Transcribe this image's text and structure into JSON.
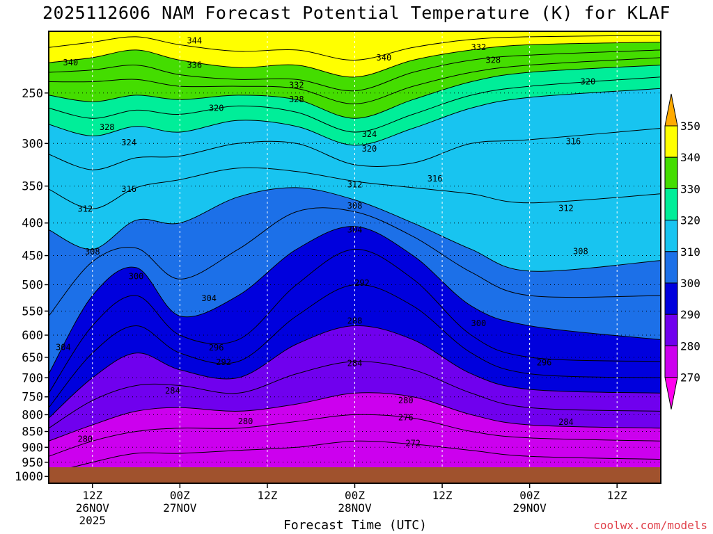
{
  "page": {
    "title": "2025112606 NAM Forecast Potential Temperature (K) for KLAF",
    "credit": "coolwx.com/models"
  },
  "chart_data": {
    "type": "heatmap",
    "title": "2025112606 NAM Forecast Potential Temperature (K) for KLAF",
    "xlabel": "Forecast Time (UTC)",
    "ylabel": "",
    "x_ticks": [
      {
        "line1": "12Z",
        "line2": "26NOV",
        "line3": "2025"
      },
      {
        "line1": "00Z",
        "line2": "27NOV",
        "line3": ""
      },
      {
        "line1": "12Z",
        "line2": "",
        "line3": ""
      },
      {
        "line1": "00Z",
        "line2": "28NOV",
        "line3": ""
      },
      {
        "line1": "12Z",
        "line2": "",
        "line3": ""
      },
      {
        "line1": "00Z",
        "line2": "29NOV",
        "line3": ""
      },
      {
        "line1": "12Z",
        "line2": "",
        "line3": ""
      }
    ],
    "x_hours": [
      6,
      18,
      30,
      42,
      54,
      66,
      78
    ],
    "xlim_hours": [
      0,
      84
    ],
    "y_ticks": [
      "250",
      "300",
      "350",
      "400",
      "450",
      "500",
      "550",
      "600",
      "650",
      "700",
      "750",
      "800",
      "850",
      "900",
      "950",
      "1000"
    ],
    "y_values": [
      250,
      300,
      350,
      400,
      450,
      500,
      550,
      600,
      650,
      700,
      750,
      800,
      850,
      900,
      950,
      1000
    ],
    "ylim_hpa": [
      200,
      1025
    ],
    "y_scale": "log-pressure",
    "grid": true,
    "colorbar": {
      "labels": [
        "350",
        "340",
        "330",
        "320",
        "310",
        "300",
        "290",
        "280",
        "270"
      ],
      "bands": [
        {
          "min": 340,
          "max": 350,
          "color": "#ffff00"
        },
        {
          "min": 330,
          "max": 340,
          "color": "#44dd00"
        },
        {
          "min": 320,
          "max": 330,
          "color": "#00ee99"
        },
        {
          "min": 310,
          "max": 320,
          "color": "#18c4f0"
        },
        {
          "min": 300,
          "max": 310,
          "color": "#1c70e8"
        },
        {
          "min": 290,
          "max": 300,
          "color": "#0000dd"
        },
        {
          "min": 280,
          "max": 290,
          "color": "#7000ee"
        },
        {
          "min": 270,
          "max": 280,
          "color": "#cc00ee"
        }
      ],
      "over_color": "#ffaa00",
      "under_color": "#ff00ee"
    },
    "series": [
      {
        "value": 344,
        "points": [
          [
            0,
            212
          ],
          [
            6,
            208
          ],
          [
            12,
            204
          ],
          [
            18,
            210
          ],
          [
            26,
            215
          ],
          [
            34,
            214
          ],
          [
            42,
            222
          ],
          [
            50,
            212
          ],
          [
            58,
            206
          ],
          [
            66,
            204
          ],
          [
            84,
            203
          ]
        ]
      },
      {
        "value": 340,
        "points": [
          [
            0,
            224
          ],
          [
            6,
            220
          ],
          [
            12,
            214
          ],
          [
            18,
            222
          ],
          [
            26,
            228
          ],
          [
            34,
            226
          ],
          [
            42,
            236
          ],
          [
            50,
            222
          ],
          [
            58,
            214
          ],
          [
            66,
            210
          ],
          [
            84,
            208
          ]
        ]
      },
      {
        "value": 336,
        "points": [
          [
            0,
            232
          ],
          [
            6,
            230
          ],
          [
            12,
            226
          ],
          [
            18,
            234
          ],
          [
            26,
            238
          ],
          [
            34,
            238
          ],
          [
            42,
            248
          ],
          [
            50,
            232
          ],
          [
            58,
            222
          ],
          [
            66,
            218
          ],
          [
            84,
            214
          ]
        ]
      },
      {
        "value": 332,
        "points": [
          [
            0,
            240
          ],
          [
            6,
            240
          ],
          [
            12,
            238
          ],
          [
            18,
            244
          ],
          [
            26,
            244
          ],
          [
            34,
            246
          ],
          [
            42,
            260
          ],
          [
            50,
            244
          ],
          [
            58,
            232
          ],
          [
            66,
            226
          ],
          [
            84,
            220
          ]
        ]
      },
      {
        "value": 328,
        "points": [
          [
            0,
            252
          ],
          [
            6,
            258
          ],
          [
            12,
            252
          ],
          [
            18,
            256
          ],
          [
            26,
            252
          ],
          [
            34,
            256
          ],
          [
            42,
            274
          ],
          [
            50,
            256
          ],
          [
            58,
            240
          ],
          [
            66,
            232
          ],
          [
            84,
            226
          ]
        ]
      },
      {
        "value": 324,
        "points": [
          [
            0,
            264
          ],
          [
            6,
            274
          ],
          [
            12,
            266
          ],
          [
            18,
            270
          ],
          [
            26,
            262
          ],
          [
            34,
            268
          ],
          [
            42,
            288
          ],
          [
            50,
            270
          ],
          [
            58,
            252
          ],
          [
            66,
            244
          ],
          [
            84,
            236
          ]
        ]
      },
      {
        "value": 320,
        "points": [
          [
            0,
            280
          ],
          [
            6,
            292
          ],
          [
            12,
            282
          ],
          [
            18,
            288
          ],
          [
            26,
            276
          ],
          [
            34,
            282
          ],
          [
            42,
            302
          ],
          [
            50,
            284
          ],
          [
            58,
            264
          ],
          [
            66,
            254
          ],
          [
            84,
            246
          ]
        ]
      },
      {
        "value": 316,
        "points": [
          [
            0,
            312
          ],
          [
            6,
            330
          ],
          [
            12,
            316
          ],
          [
            18,
            314
          ],
          [
            26,
            300
          ],
          [
            34,
            300
          ],
          [
            42,
            324
          ],
          [
            50,
            322
          ],
          [
            58,
            300
          ],
          [
            66,
            296
          ],
          [
            84,
            284
          ]
        ]
      },
      {
        "value": 312,
        "points": [
          [
            0,
            354
          ],
          [
            6,
            380
          ],
          [
            12,
            352
          ],
          [
            18,
            342
          ],
          [
            26,
            328
          ],
          [
            34,
            332
          ],
          [
            42,
            344
          ],
          [
            50,
            352
          ],
          [
            58,
            360
          ],
          [
            66,
            372
          ],
          [
            84,
            360
          ]
        ]
      },
      {
        "value": 308,
        "points": [
          [
            0,
            410
          ],
          [
            6,
            440
          ],
          [
            12,
            396
          ],
          [
            18,
            400
          ],
          [
            26,
            364
          ],
          [
            34,
            352
          ],
          [
            42,
            368
          ],
          [
            50,
            400
          ],
          [
            58,
            440
          ],
          [
            66,
            476
          ],
          [
            84,
            458
          ]
        ]
      },
      {
        "value": 304,
        "points": [
          [
            0,
            560
          ],
          [
            6,
            460
          ],
          [
            12,
            438
          ],
          [
            18,
            490
          ],
          [
            26,
            440
          ],
          [
            34,
            384
          ],
          [
            42,
            384
          ],
          [
            50,
            420
          ],
          [
            58,
            478
          ],
          [
            66,
            520
          ],
          [
            84,
            520
          ]
        ]
      },
      {
        "value": 300,
        "points": [
          [
            0,
            690
          ],
          [
            6,
            520
          ],
          [
            12,
            470
          ],
          [
            18,
            560
          ],
          [
            26,
            520
          ],
          [
            34,
            440
          ],
          [
            42,
            405
          ],
          [
            50,
            450
          ],
          [
            58,
            540
          ],
          [
            66,
            580
          ],
          [
            84,
            610
          ]
        ]
      },
      {
        "value": 296,
        "points": [
          [
            0,
            740
          ],
          [
            6,
            580
          ],
          [
            12,
            520
          ],
          [
            18,
            600
          ],
          [
            26,
            610
          ],
          [
            34,
            500
          ],
          [
            42,
            440
          ],
          [
            50,
            490
          ],
          [
            58,
            600
          ],
          [
            66,
            650
          ],
          [
            84,
            660
          ]
        ]
      },
      {
        "value": 292,
        "points": [
          [
            0,
            780
          ],
          [
            6,
            640
          ],
          [
            12,
            580
          ],
          [
            18,
            640
          ],
          [
            26,
            660
          ],
          [
            34,
            560
          ],
          [
            42,
            500
          ],
          [
            50,
            540
          ],
          [
            58,
            640
          ],
          [
            66,
            690
          ],
          [
            84,
            700
          ]
        ]
      },
      {
        "value": 288,
        "points": [
          [
            0,
            810
          ],
          [
            6,
            700
          ],
          [
            12,
            640
          ],
          [
            18,
            680
          ],
          [
            26,
            700
          ],
          [
            34,
            620
          ],
          [
            42,
            580
          ],
          [
            50,
            610
          ],
          [
            58,
            690
          ],
          [
            66,
            730
          ],
          [
            84,
            740
          ]
        ]
      },
      {
        "value": 284,
        "points": [
          [
            0,
            840
          ],
          [
            6,
            760
          ],
          [
            12,
            720
          ],
          [
            18,
            720
          ],
          [
            26,
            740
          ],
          [
            34,
            690
          ],
          [
            42,
            660
          ],
          [
            50,
            680
          ],
          [
            58,
            740
          ],
          [
            66,
            780
          ],
          [
            84,
            790
          ]
        ]
      },
      {
        "value": 280,
        "points": [
          [
            0,
            880
          ],
          [
            6,
            830
          ],
          [
            12,
            790
          ],
          [
            18,
            780
          ],
          [
            26,
            790
          ],
          [
            34,
            770
          ],
          [
            42,
            740
          ],
          [
            50,
            750
          ],
          [
            58,
            800
          ],
          [
            66,
            830
          ],
          [
            84,
            840
          ]
        ]
      },
      {
        "value": 276,
        "points": [
          [
            0,
            930
          ],
          [
            6,
            880
          ],
          [
            12,
            850
          ],
          [
            18,
            840
          ],
          [
            26,
            840
          ],
          [
            34,
            820
          ],
          [
            42,
            800
          ],
          [
            50,
            810
          ],
          [
            58,
            850
          ],
          [
            66,
            870
          ],
          [
            84,
            880
          ]
        ]
      },
      {
        "value": 272,
        "points": [
          [
            0,
            990
          ],
          [
            6,
            950
          ],
          [
            12,
            920
          ],
          [
            18,
            920
          ],
          [
            26,
            910
          ],
          [
            34,
            900
          ],
          [
            42,
            880
          ],
          [
            50,
            890
          ],
          [
            58,
            910
          ],
          [
            66,
            930
          ],
          [
            84,
            940
          ]
        ]
      }
    ],
    "label_positions": [
      {
        "value": 344,
        "x": 20,
        "p": 207
      },
      {
        "value": 340,
        "x": 3,
        "p": 224
      },
      {
        "value": 340,
        "x": 46,
        "p": 220
      },
      {
        "value": 336,
        "x": 20,
        "p": 226
      },
      {
        "value": 332,
        "x": 34,
        "p": 243
      },
      {
        "value": 332,
        "x": 59,
        "p": 212
      },
      {
        "value": 328,
        "x": 8,
        "p": 283
      },
      {
        "value": 328,
        "x": 34,
        "p": 256
      },
      {
        "value": 328,
        "x": 61,
        "p": 222
      },
      {
        "value": 324,
        "x": 11,
        "p": 299
      },
      {
        "value": 324,
        "x": 44,
        "p": 290
      },
      {
        "value": 320,
        "x": 23,
        "p": 264
      },
      {
        "value": 320,
        "x": 44,
        "p": 306
      },
      {
        "value": 320,
        "x": 74,
        "p": 240
      },
      {
        "value": 316,
        "x": 11,
        "p": 354
      },
      {
        "value": 316,
        "x": 53,
        "p": 341
      },
      {
        "value": 316,
        "x": 72,
        "p": 298
      },
      {
        "value": 312,
        "x": 5,
        "p": 380
      },
      {
        "value": 312,
        "x": 42,
        "p": 348
      },
      {
        "value": 312,
        "x": 71,
        "p": 379
      },
      {
        "value": 308,
        "x": 6,
        "p": 444
      },
      {
        "value": 308,
        "x": 42,
        "p": 376
      },
      {
        "value": 308,
        "x": 73,
        "p": 443
      },
      {
        "value": 304,
        "x": 42,
        "p": 410
      },
      {
        "value": 304,
        "x": 22,
        "p": 525
      },
      {
        "value": 304,
        "x": 2,
        "p": 627
      },
      {
        "value": 300,
        "x": 12,
        "p": 485
      },
      {
        "value": 300,
        "x": 59,
        "p": 575
      },
      {
        "value": 296,
        "x": 23,
        "p": 628
      },
      {
        "value": 296,
        "x": 68,
        "p": 663
      },
      {
        "value": 292,
        "x": 43,
        "p": 497
      },
      {
        "value": 292,
        "x": 24,
        "p": 662
      },
      {
        "value": 288,
        "x": 42,
        "p": 570
      },
      {
        "value": 284,
        "x": 42,
        "p": 664
      },
      {
        "value": 284,
        "x": 17,
        "p": 734
      },
      {
        "value": 284,
        "x": 71,
        "p": 822
      },
      {
        "value": 280,
        "x": 27,
        "p": 819
      },
      {
        "value": 280,
        "x": 49,
        "p": 760
      },
      {
        "value": 280,
        "x": 5,
        "p": 874
      },
      {
        "value": 276,
        "x": 49,
        "p": 808
      },
      {
        "value": 272,
        "x": 50,
        "p": 887
      }
    ]
  }
}
